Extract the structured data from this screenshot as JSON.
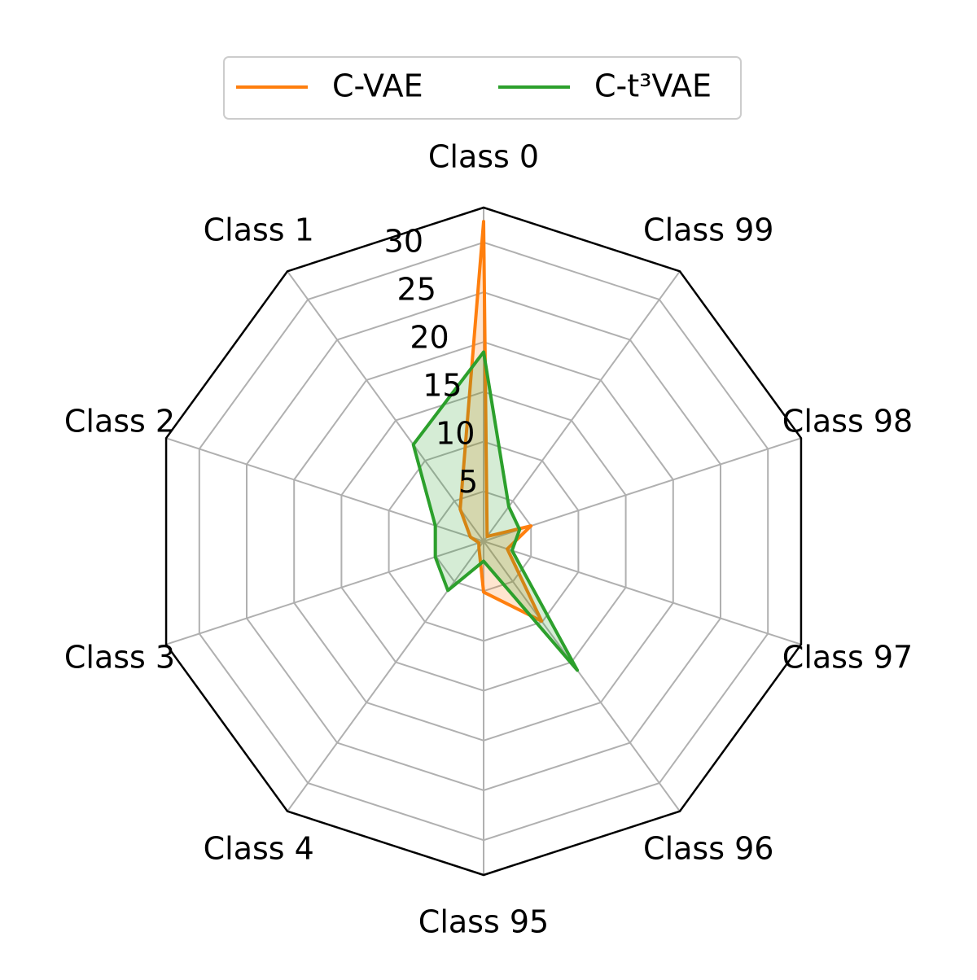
{
  "chart_data": {
    "type": "radar",
    "categories": [
      "Class 0",
      "Class 1",
      "Class 2",
      "Class 3",
      "Class 4",
      "Class 95",
      "Class 96",
      "Class 97",
      "Class 98",
      "Class 99"
    ],
    "series": [
      {
        "name": "C-VAE",
        "color": "#ff7f0e",
        "values": [
          32.1,
          4.0,
          1.4,
          0.5,
          0.8,
          5.1,
          9.9,
          2.5,
          5.0,
          0.6
        ]
      },
      {
        "name": "C-t³VAE",
        "color": "#2ca02c",
        "values": [
          19.0,
          12.0,
          5.1,
          5.1,
          6.1,
          2.0,
          16.0,
          3.0,
          3.8,
          4.3
        ]
      }
    ],
    "ylim": [
      0,
      33.5
    ],
    "yticks": [
      5,
      10,
      15,
      20,
      25,
      30
    ],
    "grid": true,
    "fill_alpha": 0.2,
    "legend": "top"
  }
}
